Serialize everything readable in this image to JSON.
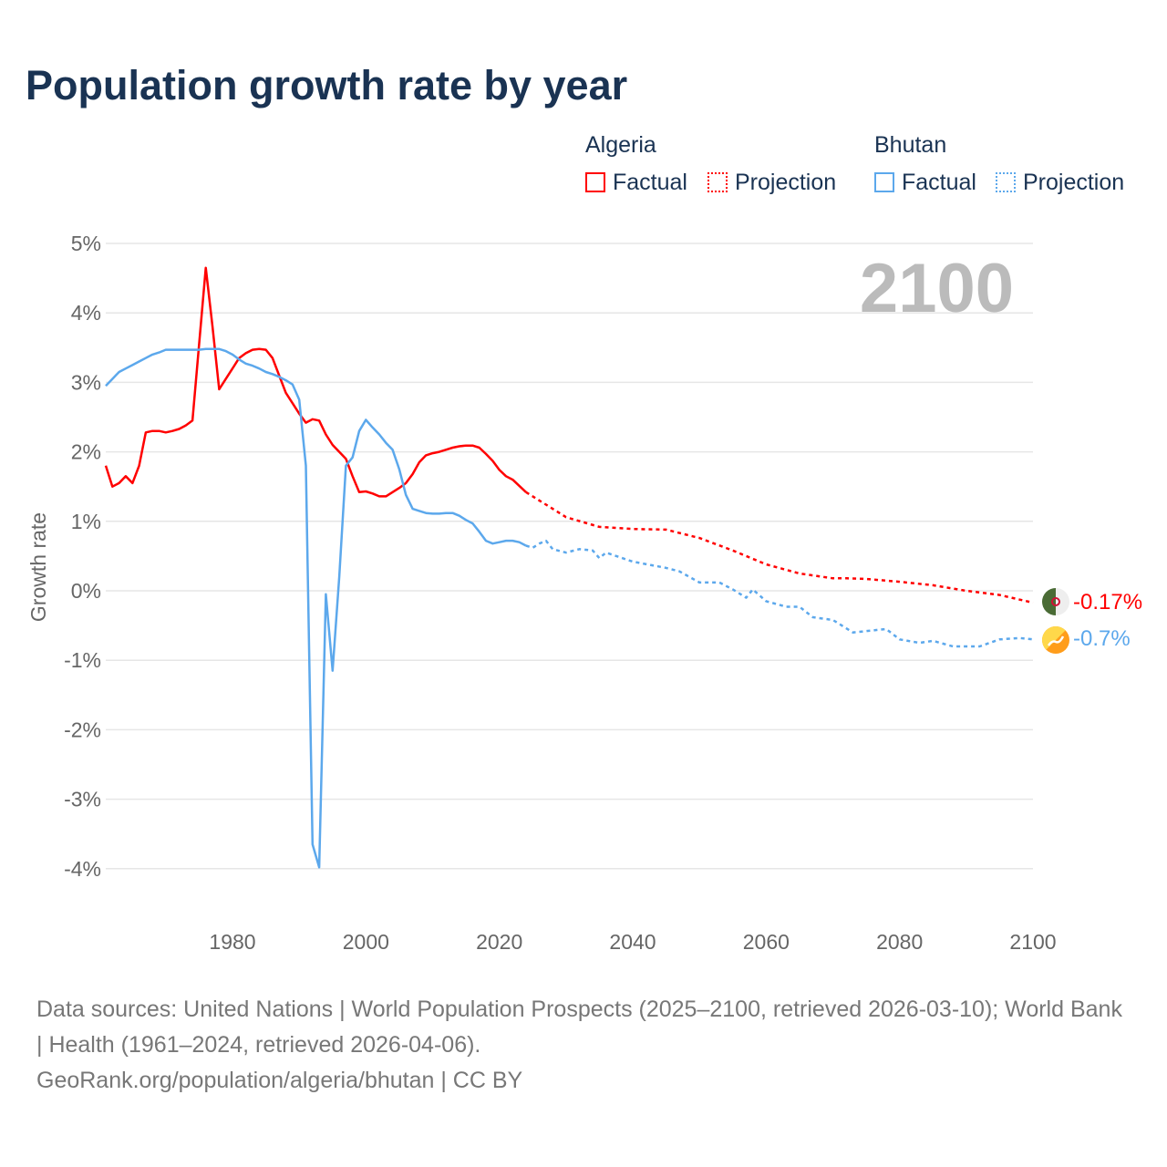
{
  "title": "Population growth rate by year",
  "legend": {
    "groups": [
      {
        "name": "Algeria",
        "factual": "Factual",
        "projection": "Projection",
        "color": "#ff0000"
      },
      {
        "name": "Bhutan",
        "factual": "Factual",
        "projection": "Projection",
        "color": "#5ca8ec"
      }
    ]
  },
  "watermark_year": "2100",
  "end_labels": {
    "algeria": "-0.17%",
    "bhutan": "-0.7%"
  },
  "source": {
    "line1": "Data sources: United Nations | World Population Prospects (2025–2100, retrieved 2026-03-10); World Bank | Health (1961–2024, retrieved 2026-04-06).",
    "line2": "GeoRank.org/population/algeria/bhutan | CC BY"
  },
  "chart_data": {
    "type": "line",
    "title": "Population growth rate by year",
    "xlabel": "",
    "ylabel": "Growth rate",
    "xlim": [
      1961,
      2100
    ],
    "ylim": [
      -4,
      5
    ],
    "yticks": [
      5,
      4,
      3,
      2,
      1,
      0,
      -1,
      -2,
      -3,
      -4
    ],
    "ytick_labels": [
      "5%",
      "4%",
      "3%",
      "2%",
      "1%",
      "0%",
      "-1%",
      "-2%",
      "-3%",
      "-4%"
    ],
    "xticks": [
      1980,
      2000,
      2020,
      2040,
      2060,
      2080,
      2100
    ],
    "xtick_labels": [
      "1980",
      "2000",
      "2020",
      "2040",
      "2060",
      "2080",
      "2100"
    ],
    "series": [
      {
        "name": "Algeria Factual",
        "color": "#ff0000",
        "dashed": false,
        "x": [
          1961,
          1962,
          1963,
          1964,
          1965,
          1966,
          1967,
          1968,
          1969,
          1970,
          1971,
          1972,
          1973,
          1974,
          1975,
          1976,
          1977,
          1978,
          1979,
          1980,
          1981,
          1982,
          1983,
          1984,
          1985,
          1986,
          1987,
          1988,
          1989,
          1990,
          1991,
          1992,
          1993,
          1994,
          1995,
          1996,
          1997,
          1998,
          1999,
          2000,
          2001,
          2002,
          2003,
          2004,
          2005,
          2006,
          2007,
          2008,
          2009,
          2010,
          2011,
          2012,
          2013,
          2014,
          2015,
          2016,
          2017,
          2018,
          2019,
          2020,
          2021,
          2022,
          2023,
          2024
        ],
        "y": [
          1.8,
          1.5,
          1.55,
          1.65,
          1.55,
          1.8,
          2.28,
          2.3,
          2.3,
          2.28,
          2.3,
          2.33,
          2.38,
          2.45,
          3.55,
          4.65,
          3.8,
          2.9,
          3.05,
          3.2,
          3.35,
          3.42,
          3.47,
          3.48,
          3.47,
          3.35,
          3.1,
          2.85,
          2.7,
          2.55,
          2.42,
          2.47,
          2.45,
          2.25,
          2.1,
          2.0,
          1.9,
          1.65,
          1.42,
          1.43,
          1.4,
          1.36,
          1.36,
          1.42,
          1.48,
          1.55,
          1.68,
          1.85,
          1.95,
          1.98,
          2.0,
          2.03,
          2.06,
          2.08,
          2.09,
          2.09,
          2.06,
          1.97,
          1.87,
          1.74,
          1.65,
          1.6,
          1.51,
          1.42
        ]
      },
      {
        "name": "Algeria Projection",
        "color": "#ff0000",
        "dashed": true,
        "x": [
          2024,
          2025,
          2030,
          2035,
          2040,
          2045,
          2050,
          2055,
          2060,
          2065,
          2070,
          2072,
          2075,
          2080,
          2085,
          2090,
          2095,
          2100
        ],
        "y": [
          1.42,
          1.36,
          1.06,
          0.92,
          0.89,
          0.88,
          0.76,
          0.58,
          0.38,
          0.25,
          0.18,
          0.18,
          0.17,
          0.13,
          0.08,
          0.0,
          -0.06,
          -0.17
        ]
      },
      {
        "name": "Bhutan Factual",
        "color": "#5ca8ec",
        "dashed": false,
        "x": [
          1961,
          1962,
          1963,
          1964,
          1965,
          1966,
          1967,
          1968,
          1969,
          1970,
          1971,
          1972,
          1973,
          1974,
          1975,
          1976,
          1977,
          1978,
          1979,
          1980,
          1981,
          1982,
          1983,
          1984,
          1985,
          1986,
          1987,
          1988,
          1989,
          1990,
          1991,
          1992,
          1993,
          1994,
          1995,
          1996,
          1997,
          1998,
          1999,
          2000,
          2001,
          2002,
          2003,
          2004,
          2005,
          2006,
          2007,
          2008,
          2009,
          2010,
          2011,
          2012,
          2013,
          2014,
          2015,
          2016,
          2017,
          2018,
          2019,
          2020,
          2021,
          2022,
          2023,
          2024
        ],
        "y": [
          2.95,
          3.05,
          3.15,
          3.2,
          3.25,
          3.3,
          3.35,
          3.4,
          3.43,
          3.47,
          3.47,
          3.47,
          3.47,
          3.47,
          3.47,
          3.48,
          3.48,
          3.48,
          3.45,
          3.4,
          3.33,
          3.27,
          3.24,
          3.2,
          3.15,
          3.12,
          3.08,
          3.03,
          2.97,
          2.75,
          1.8,
          -3.65,
          -3.98,
          -0.05,
          -1.15,
          0.2,
          1.8,
          1.92,
          2.3,
          2.46,
          2.35,
          2.25,
          2.13,
          2.03,
          1.75,
          1.38,
          1.18,
          1.15,
          1.12,
          1.11,
          1.11,
          1.12,
          1.12,
          1.08,
          1.02,
          0.97,
          0.85,
          0.72,
          0.68,
          0.7,
          0.72,
          0.72,
          0.7,
          0.65
        ]
      },
      {
        "name": "Bhutan Projection",
        "color": "#5ca8ec",
        "dashed": true,
        "x": [
          2024,
          2025,
          2026,
          2027,
          2028,
          2030,
          2032,
          2034,
          2035,
          2036,
          2040,
          2045,
          2047,
          2050,
          2053,
          2055,
          2057,
          2058,
          2060,
          2063,
          2065,
          2067,
          2070,
          2073,
          2075,
          2078,
          2080,
          2083,
          2085,
          2088,
          2092,
          2095,
          2098,
          2100
        ],
        "y": [
          0.65,
          0.62,
          0.68,
          0.72,
          0.6,
          0.55,
          0.6,
          0.58,
          0.47,
          0.55,
          0.42,
          0.33,
          0.28,
          0.12,
          0.12,
          0.02,
          -0.1,
          0.02,
          -0.15,
          -0.23,
          -0.23,
          -0.38,
          -0.42,
          -0.6,
          -0.58,
          -0.55,
          -0.7,
          -0.75,
          -0.72,
          -0.8,
          -0.8,
          -0.7,
          -0.68,
          -0.7
        ]
      }
    ]
  }
}
